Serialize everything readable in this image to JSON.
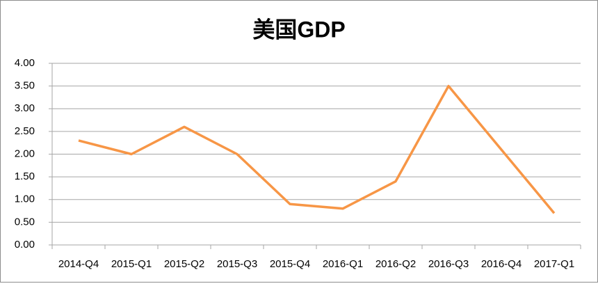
{
  "chart_data": {
    "type": "line",
    "title": "美国GDP",
    "categories": [
      "2014-Q4",
      "2015-Q1",
      "2015-Q2",
      "2015-Q3",
      "2015-Q4",
      "2016-Q1",
      "2016-Q2",
      "2016-Q3",
      "2016-Q4",
      "2017-Q1"
    ],
    "values": [
      2.3,
      2.0,
      2.6,
      2.0,
      0.9,
      0.8,
      1.4,
      3.5,
      2.1,
      0.7
    ],
    "color": "#f79646",
    "ylim": [
      0,
      4
    ],
    "yticks": [
      {
        "value": 0,
        "label": "0.00"
      },
      {
        "value": 0.5,
        "label": "0.50"
      },
      {
        "value": 1,
        "label": "1.00"
      },
      {
        "value": 1.5,
        "label": "1.50"
      },
      {
        "value": 2,
        "label": "2.00"
      },
      {
        "value": 2.5,
        "label": "2.50"
      },
      {
        "value": 3,
        "label": "3.00"
      },
      {
        "value": 3.5,
        "label": "3.50"
      },
      {
        "value": 4,
        "label": "4.00"
      }
    ],
    "grid": true
  }
}
